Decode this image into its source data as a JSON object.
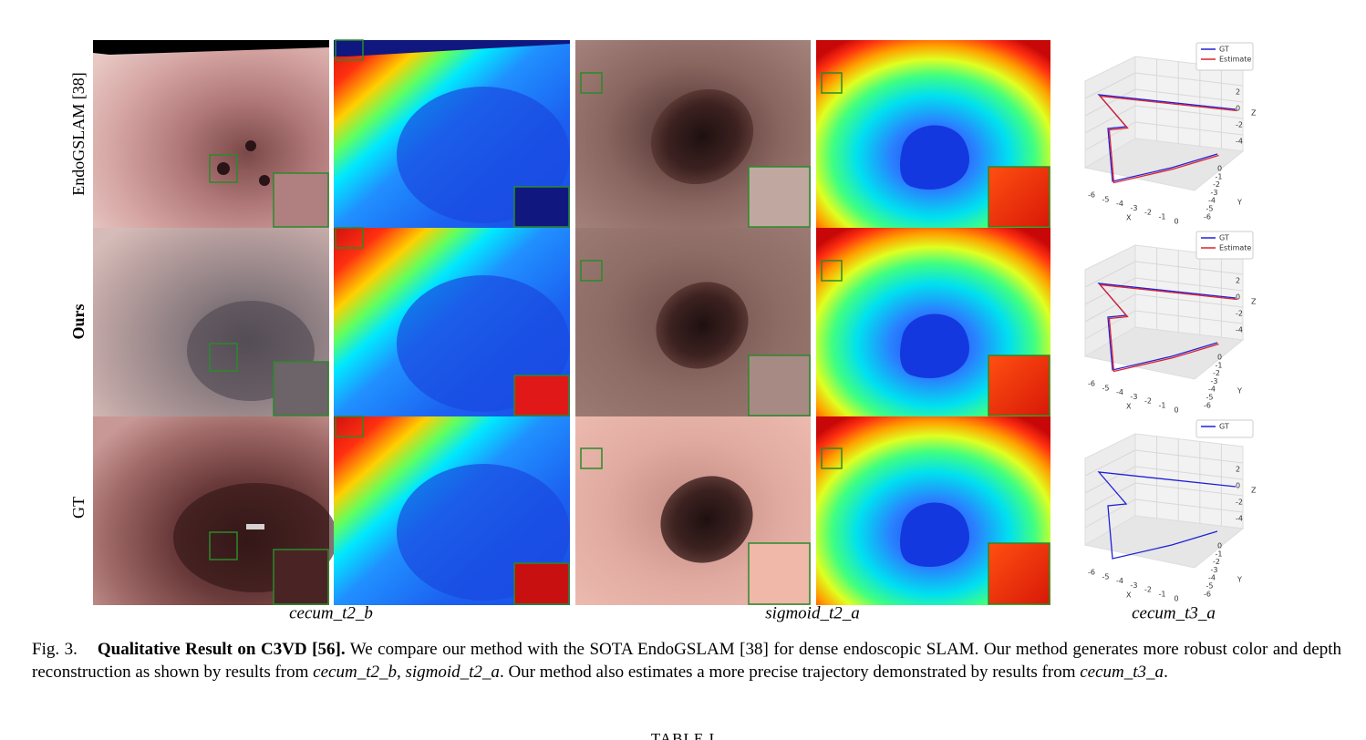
{
  "row_labels": [
    "EndoGSLAM [38]",
    "Ours",
    "GT"
  ],
  "column_captions": [
    "cecum_t2_b",
    "sigmoid_t2_a",
    "cecum_t3_a"
  ],
  "plots": [
    {
      "legend": [
        "GT",
        "Estimate"
      ]
    },
    {
      "legend": [
        "GT",
        "Estimate"
      ]
    },
    {
      "legend": [
        "GT"
      ]
    }
  ],
  "plot_axes": {
    "x_label": "X",
    "y_label": "Y",
    "z_label": "Z",
    "x_ticks": [
      "-6",
      "-5",
      "-4",
      "-3",
      "-2",
      "-1",
      "0"
    ],
    "y_ticks": [
      "0",
      "-1",
      "-2",
      "-3",
      "-4",
      "-5",
      "-6"
    ],
    "z_ticks": [
      "2",
      "0",
      "-2",
      "-4"
    ]
  },
  "caption": {
    "label": "Fig. 3.",
    "title": "Qualitative Result on C3VD [56].",
    "text_1": "We compare our method with the SOTA EndoGSLAM [38] for dense endoscopic SLAM. Our method generates more robust color and depth reconstruction as shown by results from",
    "term_1": "cecum_t2_b",
    "sep_1": ",",
    "term_2": "sigmoid_t2_a",
    "text_2": ". Our method also estimates a more precise trajectory demonstrated by results from",
    "term_3": "cecum_t3_a",
    "end": "."
  },
  "next_heading": "TABLE I"
}
